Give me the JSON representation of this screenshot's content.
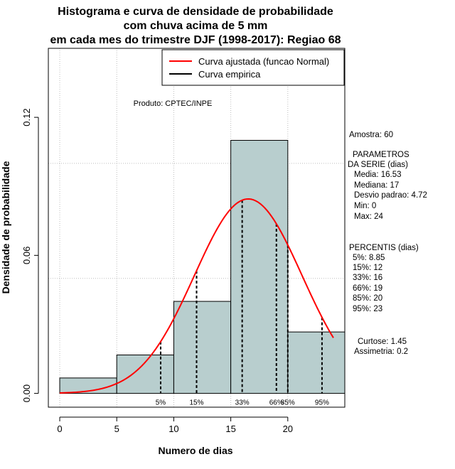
{
  "chart_data": {
    "type": "histogram",
    "title_lines": [
      "Histograma e curva de densidade de probabilidade",
      "com chuva acima de 5 mm",
      "em cada mes do trimestre DJF (1998-2017): Regiao 68"
    ],
    "xlabel": "Numero de dias",
    "ylabel": "Densidade de probabilidade",
    "xlim": [
      -1,
      25
    ],
    "ylim": [
      -0.006,
      0.15
    ],
    "x_ticks": [
      0,
      5,
      10,
      15,
      20
    ],
    "y_ticks": [
      0.0,
      0.06,
      0.12
    ],
    "y_tick_labels": [
      "0.00",
      "0.06",
      "0.12"
    ],
    "grid_x": [
      0,
      5,
      10,
      15,
      20
    ],
    "grid_y": [
      0.05,
      0.1,
      0.15
    ],
    "bins": [
      {
        "from": 0,
        "to": 5,
        "density": 0.0067
      },
      {
        "from": 5,
        "to": 10,
        "density": 0.0167
      },
      {
        "from": 10,
        "to": 15,
        "density": 0.04
      },
      {
        "from": 15,
        "to": 20,
        "density": 0.11
      },
      {
        "from": 20,
        "to": 25,
        "density": 0.0267
      }
    ],
    "normal_fit": {
      "mean": 16.53,
      "sd": 4.72,
      "x_from": 0,
      "x_to": 24
    },
    "percentile_lines": [
      {
        "label": "5%",
        "x": 8.85
      },
      {
        "label": "15%",
        "x": 12
      },
      {
        "label": "33%",
        "x": 16
      },
      {
        "label": "66%",
        "x": 19
      },
      {
        "label": "85%",
        "x": 20
      },
      {
        "label": "95%",
        "x": 23
      }
    ],
    "legend": [
      {
        "label": "Curva ajustada (funcao Normal)",
        "color": "#ff0000"
      },
      {
        "label": "Curva empirica",
        "color": "#000000"
      }
    ],
    "legend_position": "top-right",
    "colors": {
      "bar_fill": "#b8cece",
      "fit_line": "#ff0000",
      "percentile": "#000000",
      "grid": "#bdbdbd"
    }
  },
  "product_label": "Produto: CPTEC/INPE",
  "stats": {
    "sample": "Amostra: 60",
    "params_title_1": "PARAMETROS",
    "params_title_2": "DA SERIE (dias)",
    "media": "Media: 16.53",
    "mediana": "Mediana: 17",
    "desvio": "Desvio padrao: 4.72",
    "min": "Min: 0",
    "max": "Max: 24",
    "percentis_title": "PERCENTIS (dias)",
    "p5": "5%: 8.85",
    "p15": "15%: 12",
    "p33": "33%: 16",
    "p66": "66%: 19",
    "p85": "85%: 20",
    "p95": "95%: 23",
    "curtose": "Curtose: 1.45",
    "assimetria": "Assimetria: 0.2"
  }
}
